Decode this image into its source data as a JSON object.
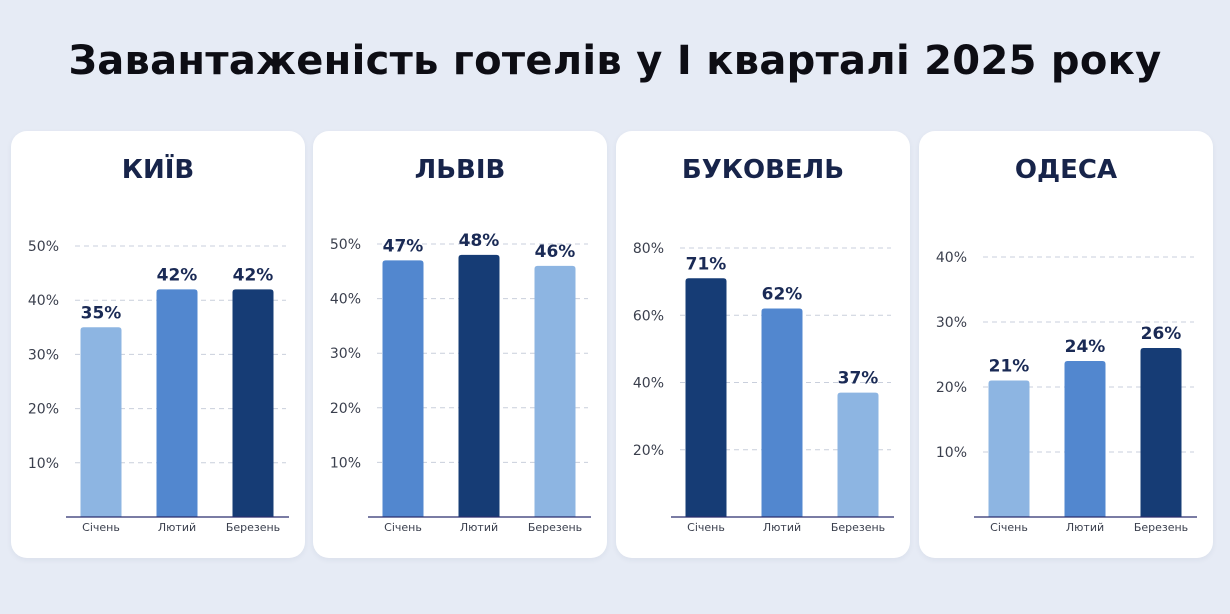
{
  "title": "Завантаженість готелів у І кварталі 2025 року",
  "colors": {
    "light": "#8db5e2",
    "mid": "#5287cf",
    "dark": "#163c75",
    "grid": "#c9cfdc",
    "axis": "#2a2e6e"
  },
  "chart_data": [
    {
      "type": "bar",
      "title": "КИЇВ",
      "categories": [
        "Січень",
        "Лютий",
        "Березень"
      ],
      "values": [
        35,
        42,
        42
      ],
      "value_labels": [
        "35%",
        "42%",
        "42%"
      ],
      "bar_colors": [
        "light",
        "mid",
        "dark"
      ],
      "ylim": [
        0,
        50
      ],
      "yticks": [
        10,
        20,
        30,
        40,
        50
      ],
      "ytick_labels": [
        "10%",
        "20%",
        "30%",
        "40%",
        "50%"
      ],
      "grid": true
    },
    {
      "type": "bar",
      "title": "ЛЬВІВ",
      "categories": [
        "Січень",
        "Лютий",
        "Березень"
      ],
      "values": [
        47,
        48,
        46
      ],
      "value_labels": [
        "47%",
        "48%",
        "46%"
      ],
      "bar_colors": [
        "mid",
        "dark",
        "light"
      ],
      "ylim": [
        0,
        50
      ],
      "yticks": [
        10,
        20,
        30,
        40,
        50
      ],
      "ytick_labels": [
        "10%",
        "20%",
        "30%",
        "40%",
        "50%"
      ],
      "grid": true
    },
    {
      "type": "bar",
      "title": "БУКОВЕЛЬ",
      "categories": [
        "Січень",
        "Лютий",
        "Березень"
      ],
      "values": [
        71,
        62,
        37
      ],
      "value_labels": [
        "71%",
        "62%",
        "37%"
      ],
      "bar_colors": [
        "dark",
        "mid",
        "light"
      ],
      "ylim": [
        0,
        80
      ],
      "yticks": [
        20,
        40,
        60,
        80
      ],
      "ytick_labels": [
        "20%",
        "40%",
        "60%",
        "80%"
      ],
      "grid": true
    },
    {
      "type": "bar",
      "title": "ОДЕСА",
      "categories": [
        "Січень",
        "Лютий",
        "Березень"
      ],
      "values": [
        21,
        24,
        26
      ],
      "value_labels": [
        "21%",
        "24%",
        "26%"
      ],
      "bar_colors": [
        "light",
        "mid",
        "dark"
      ],
      "ylim": [
        0,
        40
      ],
      "yticks": [
        10,
        20,
        30,
        40
      ],
      "ytick_labels": [
        "10%",
        "20%",
        "30%",
        "40%"
      ],
      "grid": true
    }
  ]
}
